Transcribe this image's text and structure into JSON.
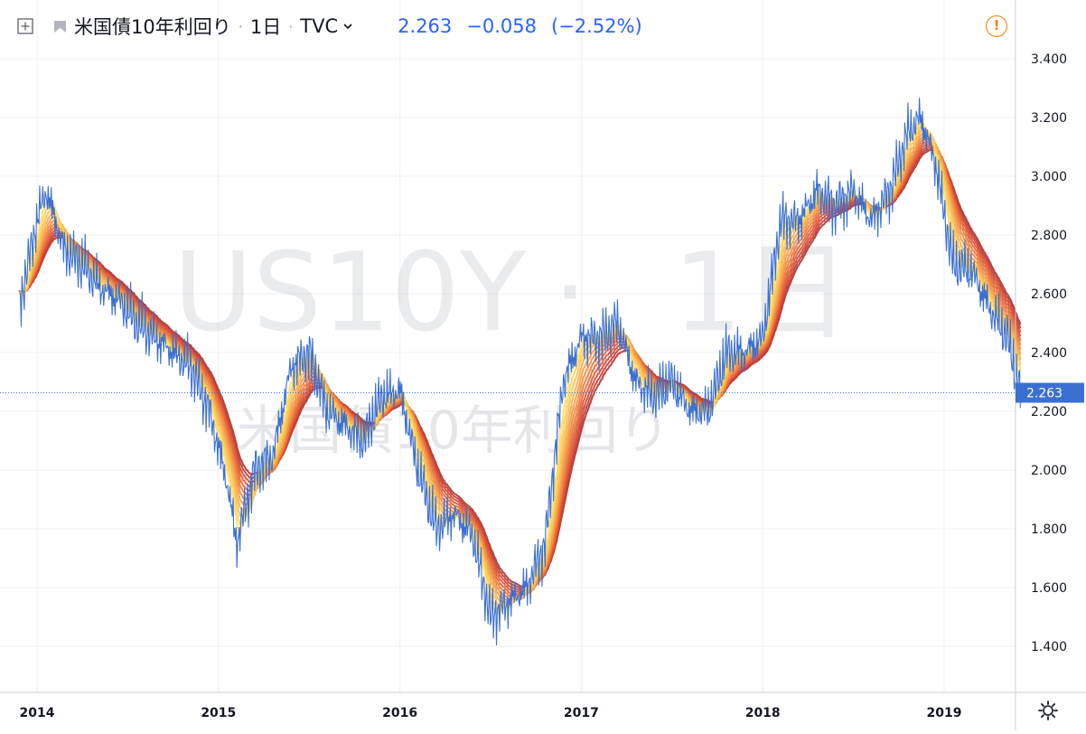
{
  "header": {
    "symbol_name": "米国債10年利回り",
    "interval": "1日",
    "source": "TVC",
    "last": "2.263",
    "change": "−0.058",
    "change_pct": "(−2.52%)",
    "separator": "·"
  },
  "watermark": {
    "ticker": "US10Y",
    "dot": "·",
    "interval": "1日",
    "name": "米国債10年利回り"
  },
  "colors": {
    "price_line": "#3b6fd4",
    "price_label_bg": "#3b6fd4",
    "grid": "#eceff3",
    "alert": "#f57c00",
    "ribbon": [
      "#ffe066",
      "#fdd056",
      "#fbc04d",
      "#f8ad46",
      "#f59a3f",
      "#f1873a",
      "#ec7436",
      "#e66234",
      "#de5232",
      "#d14531",
      "#c13a31",
      "#ad3131"
    ]
  },
  "icons": {
    "toggle": "plus-square-icon",
    "flag": "flag-icon",
    "dropdown": "chevron-down-icon",
    "alert": "exclamation-circle-icon",
    "settings": "gear-icon"
  },
  "chart_data": {
    "type": "line",
    "title": "米国債10年利回り",
    "ylim": [
      1.3,
      3.5
    ],
    "y_ticks": [
      "3.400",
      "3.200",
      "3.000",
      "2.800",
      "2.600",
      "2.400",
      "2.200",
      "2.000",
      "1.800",
      "1.600",
      "1.400"
    ],
    "x_ticks": [
      "2014",
      "2015",
      "2016",
      "2017",
      "2018",
      "2019"
    ],
    "last_value": 2.263,
    "last_value_label": "2.263",
    "grid": true,
    "x": [
      2013.9,
      2014.0,
      2014.05,
      2014.15,
      2014.25,
      2014.35,
      2014.45,
      2014.55,
      2014.65,
      2014.75,
      2014.85,
      2014.95,
      2015.05,
      2015.1,
      2015.2,
      2015.3,
      2015.4,
      2015.5,
      2015.6,
      2015.7,
      2015.8,
      2015.9,
      2016.0,
      2016.1,
      2016.2,
      2016.3,
      2016.4,
      2016.5,
      2016.6,
      2016.7,
      2016.8,
      2016.9,
      2017.0,
      2017.1,
      2017.2,
      2017.3,
      2017.4,
      2017.5,
      2017.6,
      2017.7,
      2017.8,
      2017.9,
      2018.0,
      2018.1,
      2018.2,
      2018.3,
      2018.4,
      2018.5,
      2018.6,
      2018.7,
      2018.8,
      2018.87,
      2018.95,
      2019.05,
      2019.15,
      2019.25,
      2019.35,
      2019.42
    ],
    "series": [
      {
        "name": "US10Y",
        "values": [
          2.55,
          2.85,
          2.95,
          2.75,
          2.7,
          2.62,
          2.58,
          2.5,
          2.45,
          2.4,
          2.35,
          2.2,
          1.95,
          1.75,
          2.0,
          2.05,
          2.35,
          2.4,
          2.2,
          2.15,
          2.1,
          2.25,
          2.27,
          2.0,
          1.8,
          1.85,
          1.78,
          1.5,
          1.55,
          1.6,
          1.75,
          2.3,
          2.45,
          2.45,
          2.5,
          2.3,
          2.25,
          2.3,
          2.2,
          2.2,
          2.4,
          2.4,
          2.45,
          2.85,
          2.85,
          2.95,
          2.9,
          2.95,
          2.85,
          2.95,
          3.15,
          3.2,
          3.05,
          2.7,
          2.68,
          2.55,
          2.45,
          2.26
        ]
      }
    ]
  }
}
